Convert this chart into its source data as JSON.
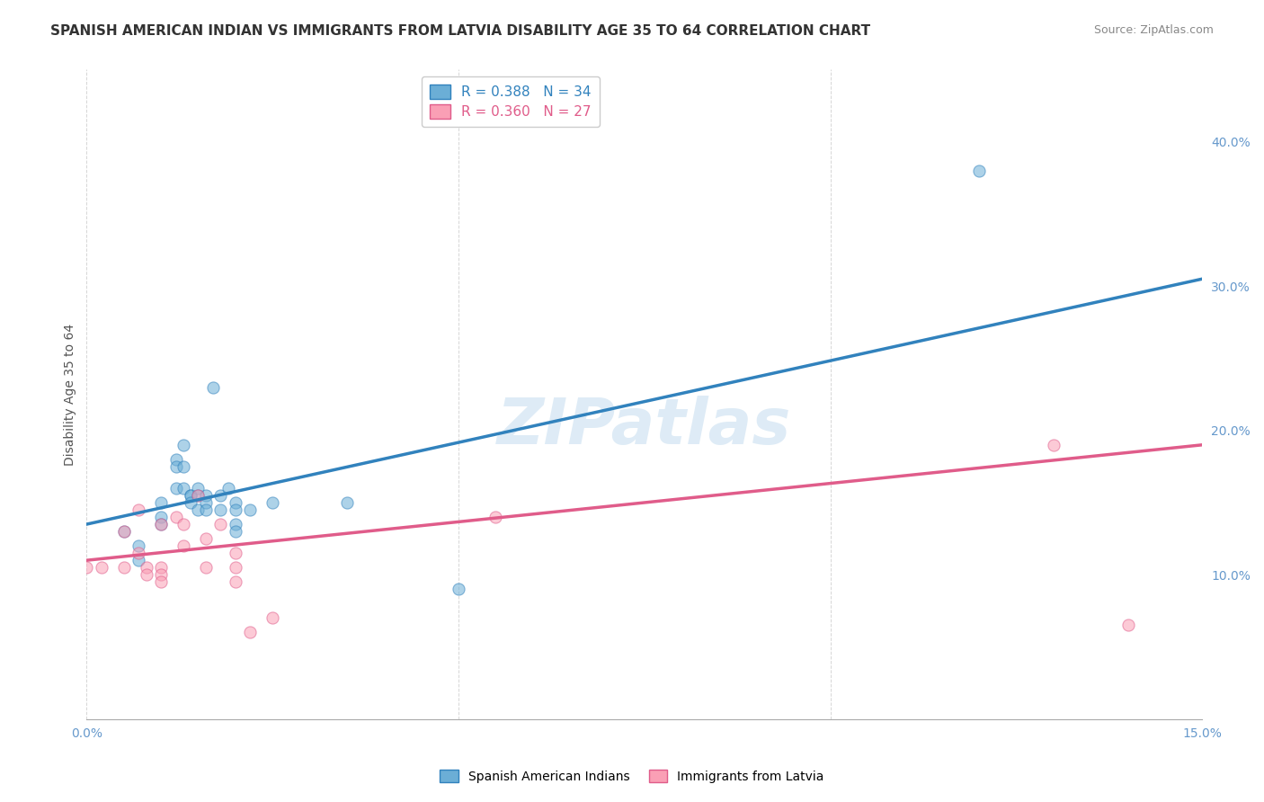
{
  "title": "SPANISH AMERICAN INDIAN VS IMMIGRANTS FROM LATVIA DISABILITY AGE 35 TO 64 CORRELATION CHART",
  "source": "Source: ZipAtlas.com",
  "ylabel": "Disability Age 35 to 64",
  "xlim": [
    0.0,
    0.15
  ],
  "ylim": [
    0.0,
    0.45
  ],
  "yticks": [
    0.1,
    0.2,
    0.3,
    0.4
  ],
  "ytick_labels": [
    "10.0%",
    "20.0%",
    "30.0%",
    "40.0%"
  ],
  "xticks": [
    0.0,
    0.05,
    0.1,
    0.15
  ],
  "xtick_labels": [
    "0.0%",
    "",
    "",
    "15.0%"
  ],
  "blue_R": 0.388,
  "blue_N": 34,
  "pink_R": 0.36,
  "pink_N": 27,
  "blue_color": "#6baed6",
  "pink_color": "#fa9fb5",
  "line_blue": "#3182bd",
  "line_pink": "#e05c8a",
  "background_color": "#ffffff",
  "grid_color": "#cccccc",
  "watermark": "ZIPatlas",
  "title_fontsize": 11,
  "tick_label_color": "#6699cc",
  "blue_scatter_x": [
    0.005,
    0.007,
    0.007,
    0.01,
    0.01,
    0.01,
    0.012,
    0.012,
    0.012,
    0.013,
    0.013,
    0.013,
    0.014,
    0.014,
    0.014,
    0.015,
    0.015,
    0.015,
    0.016,
    0.016,
    0.016,
    0.017,
    0.018,
    0.018,
    0.019,
    0.02,
    0.02,
    0.02,
    0.02,
    0.022,
    0.025,
    0.035,
    0.05,
    0.12
  ],
  "blue_scatter_y": [
    0.13,
    0.12,
    0.11,
    0.15,
    0.14,
    0.135,
    0.18,
    0.175,
    0.16,
    0.19,
    0.175,
    0.16,
    0.155,
    0.155,
    0.15,
    0.16,
    0.155,
    0.145,
    0.155,
    0.15,
    0.145,
    0.23,
    0.155,
    0.145,
    0.16,
    0.15,
    0.145,
    0.135,
    0.13,
    0.145,
    0.15,
    0.15,
    0.09,
    0.38
  ],
  "pink_scatter_x": [
    0.0,
    0.002,
    0.005,
    0.005,
    0.007,
    0.007,
    0.008,
    0.008,
    0.01,
    0.01,
    0.01,
    0.01,
    0.012,
    0.013,
    0.013,
    0.015,
    0.016,
    0.016,
    0.018,
    0.02,
    0.02,
    0.02,
    0.022,
    0.025,
    0.055,
    0.13,
    0.14
  ],
  "pink_scatter_y": [
    0.105,
    0.105,
    0.13,
    0.105,
    0.145,
    0.115,
    0.105,
    0.1,
    0.135,
    0.105,
    0.1,
    0.095,
    0.14,
    0.135,
    0.12,
    0.155,
    0.125,
    0.105,
    0.135,
    0.115,
    0.105,
    0.095,
    0.06,
    0.07,
    0.14,
    0.19,
    0.065
  ],
  "blue_line_x": [
    0.0,
    0.15
  ],
  "blue_line_y": [
    0.135,
    0.305
  ],
  "pink_line_x": [
    0.0,
    0.15
  ],
  "pink_line_y": [
    0.11,
    0.19
  ]
}
